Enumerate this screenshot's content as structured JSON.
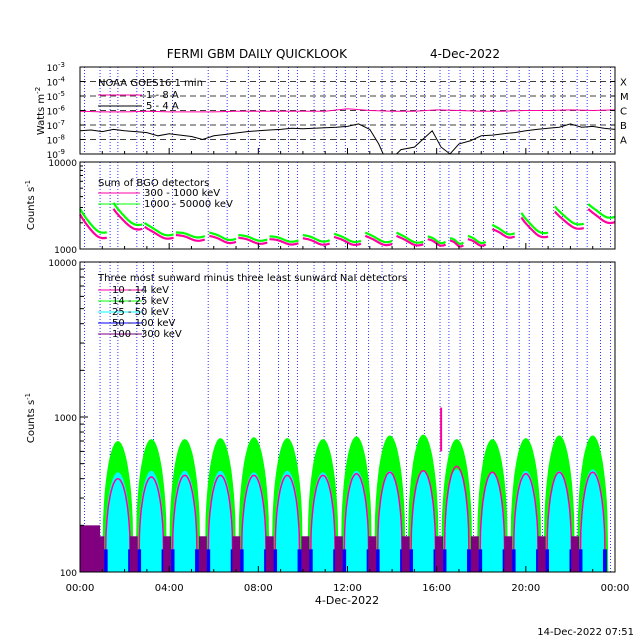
{
  "title": "FERMI GBM DAILY QUICKLOOK",
  "date": "4-Dec-2022",
  "timestamp": "14-Dec-2022 07:51",
  "xaxis": {
    "label": "4-Dec-2022",
    "range_hours": [
      0,
      24
    ],
    "ticks": [
      "00:00",
      "04:00",
      "08:00",
      "12:00",
      "16:00",
      "20:00",
      "00:00"
    ],
    "tick_hours": [
      0,
      4,
      8,
      12,
      16,
      20,
      24
    ]
  },
  "colors": {
    "magenta": "#ff00a0",
    "green": "#00ff00",
    "cyan": "#00ffff",
    "blue": "#0000ff",
    "purple": "#800080",
    "saa_lines": "#0000ff",
    "frame": "#000000"
  },
  "chart_data": [
    {
      "type": "line",
      "panel": "goes",
      "title": "NOAA GOES16 1 min",
      "ylabel": "Watts m",
      "ylabel_sup": "-2",
      "yscale": "log",
      "ylim": [
        1e-09,
        0.001
      ],
      "yticks": [
        {
          "base": "10",
          "exp": "-9"
        },
        {
          "base": "10",
          "exp": "-8"
        },
        {
          "base": "10",
          "exp": "-7"
        },
        {
          "base": "10",
          "exp": "-6"
        },
        {
          "base": "10",
          "exp": "-5"
        },
        {
          "base": "10",
          "exp": "-4"
        },
        {
          "base": "10",
          "exp": "-3"
        }
      ],
      "flare_classes": [
        "X",
        "M",
        "C",
        "B",
        "A"
      ],
      "flare_levels": [
        0.0001,
        1e-05,
        1e-06,
        1e-07,
        1e-08
      ],
      "series": [
        {
          "name": "1 - 8 A",
          "color": "#ff00a0",
          "x": [
            0,
            1,
            2,
            3,
            4,
            5,
            6,
            7,
            8,
            9,
            10,
            11,
            12,
            13,
            14,
            15,
            16,
            17,
            18,
            19,
            20,
            21,
            22,
            23,
            24
          ],
          "values": [
            9e-07,
            8e-07,
            8e-07,
            9e-07,
            8e-07,
            8e-07,
            8e-07,
            9e-07,
            9e-07,
            9e-07,
            9e-07,
            9e-07,
            1.3e-06,
            1e-06,
            9e-07,
            9e-07,
            1.1e-06,
            1e-06,
            9e-07,
            9e-07,
            1e-06,
            1e-06,
            1.1e-06,
            1e-06,
            1.1e-06
          ]
        },
        {
          "name": "5 - 4 A",
          "color": "#000000",
          "x": [
            0,
            0.5,
            1,
            1.5,
            2,
            2.5,
            3,
            3.5,
            4,
            4.5,
            5,
            5.5,
            6,
            6.5,
            7,
            7.5,
            8,
            8.5,
            9,
            9.5,
            10,
            10.5,
            11,
            11.5,
            12,
            12.5,
            13,
            13.4,
            13.6,
            14.2,
            14.4,
            15,
            15.5,
            15.8,
            16.2,
            16.6,
            17,
            17.5,
            18,
            18.5,
            19,
            19.5,
            20,
            20.5,
            21,
            21.5,
            22,
            22.5,
            23,
            23.5,
            24
          ],
          "values": [
            4e-08,
            4.5e-08,
            3.5e-08,
            5e-08,
            4e-08,
            3.5e-08,
            3e-08,
            1.8e-08,
            2.5e-08,
            2e-08,
            1.6e-08,
            1e-08,
            1.8e-08,
            2.2e-08,
            2.8e-08,
            3.5e-08,
            4e-08,
            4.5e-08,
            5e-08,
            6e-08,
            5.5e-08,
            6e-08,
            6.5e-08,
            7e-08,
            8e-08,
            1.2e-07,
            5e-08,
            5e-09,
            1e-09,
            1e-09,
            2e-09,
            3e-09,
            1.5e-08,
            4e-08,
            3e-09,
            1e-09,
            5e-09,
            8e-09,
            1.8e-08,
            2e-08,
            2.5e-08,
            3e-08,
            4e-08,
            5e-08,
            6e-08,
            7e-08,
            1.2e-07,
            7e-08,
            8e-08,
            6e-08,
            5e-08
          ]
        }
      ]
    },
    {
      "type": "line",
      "panel": "bgo",
      "title": "Sum of BGO detectors",
      "ylabel": "Counts s",
      "ylabel_sup": "-1",
      "yscale": "log",
      "ylim": [
        1000,
        10000
      ],
      "yticks": [
        "1000",
        "10000"
      ],
      "series": [
        {
          "name": "300 - 1000 keV",
          "color": "#ff00a0"
        },
        {
          "name": "1000 - 50000 keV",
          "color": "#00ff00"
        }
      ],
      "segments": [
        {
          "start": 0.0,
          "end": 1.2,
          "peak_high": 2900,
          "peak_low": 2500,
          "floor_high": 1500,
          "floor_low": 1300
        },
        {
          "start": 1.5,
          "end": 2.8,
          "peak_high": 3400,
          "peak_low": 2900,
          "floor_high": 1850,
          "floor_low": 1650
        },
        {
          "start": 2.9,
          "end": 4.2,
          "peak_high": 2000,
          "peak_low": 1800,
          "floor_high": 1450,
          "floor_low": 1330
        },
        {
          "start": 4.3,
          "end": 5.6,
          "peak_high": 1550,
          "peak_low": 1450,
          "floor_high": 1400,
          "floor_low": 1280
        },
        {
          "start": 5.8,
          "end": 7.0,
          "peak_high": 1550,
          "peak_low": 1420,
          "floor_high": 1300,
          "floor_low": 1200
        },
        {
          "start": 7.1,
          "end": 8.4,
          "peak_high": 1450,
          "peak_low": 1350,
          "floor_high": 1280,
          "floor_low": 1180
        },
        {
          "start": 8.5,
          "end": 9.8,
          "peak_high": 1400,
          "peak_low": 1300,
          "floor_high": 1250,
          "floor_low": 1160
        },
        {
          "start": 10.0,
          "end": 11.2,
          "peak_high": 1450,
          "peak_low": 1330,
          "floor_high": 1250,
          "floor_low": 1150
        },
        {
          "start": 11.4,
          "end": 12.6,
          "peak_high": 1500,
          "peak_low": 1380,
          "floor_high": 1230,
          "floor_low": 1140
        },
        {
          "start": 12.8,
          "end": 14.0,
          "peak_high": 1550,
          "peak_low": 1420,
          "floor_high": 1220,
          "floor_low": 1130
        },
        {
          "start": 14.2,
          "end": 15.4,
          "peak_high": 1550,
          "peak_low": 1420,
          "floor_high": 1200,
          "floor_low": 1120
        },
        {
          "start": 15.6,
          "end": 16.4,
          "peak_high": 1400,
          "peak_low": 1300,
          "floor_high": 1200,
          "floor_low": 1120
        },
        {
          "start": 16.6,
          "end": 17.2,
          "peak_high": 1330,
          "peak_low": 1250,
          "floor_high": 1180,
          "floor_low": 1100
        },
        {
          "start": 17.4,
          "end": 18.2,
          "peak_high": 1420,
          "peak_low": 1300,
          "floor_high": 1200,
          "floor_low": 1120
        },
        {
          "start": 18.5,
          "end": 19.5,
          "peak_high": 1900,
          "peak_low": 1700,
          "floor_high": 1500,
          "floor_low": 1380
        },
        {
          "start": 19.8,
          "end": 21.0,
          "peak_high": 2600,
          "peak_low": 2300,
          "floor_high": 1500,
          "floor_low": 1350
        },
        {
          "start": 21.3,
          "end": 22.6,
          "peak_high": 3100,
          "peak_low": 2700,
          "floor_high": 1900,
          "floor_low": 1700
        },
        {
          "start": 22.8,
          "end": 24.0,
          "peak_high": 3300,
          "peak_low": 2900,
          "floor_high": 2300,
          "floor_low": 2000
        }
      ]
    },
    {
      "type": "area",
      "panel": "nai",
      "title": "Three most sunward minus three least sunward NaI detectors",
      "ylabel": "Counts s",
      "ylabel_sup": "-1",
      "yscale": "log",
      "ylim": [
        100,
        10000
      ],
      "yticks": [
        "100",
        "1000",
        "10000"
      ],
      "series": [
        {
          "name": "10 - 14 keV",
          "color": "#ff00a0"
        },
        {
          "name": "14 - 25 keV",
          "color": "#00ff00"
        },
        {
          "name": "25 - 50 keV",
          "color": "#00ffff"
        },
        {
          "name": "50 - 100 keV",
          "color": "#0000ff"
        },
        {
          "name": "100 - 300 keV",
          "color": "#800080"
        }
      ],
      "orbits": [
        {
          "start": 1.0,
          "end": 2.4,
          "green": 700,
          "magenta": 400,
          "cyan": 440
        },
        {
          "start": 2.5,
          "end": 3.9,
          "green": 720,
          "magenta": 410,
          "cyan": 450
        },
        {
          "start": 4.0,
          "end": 5.4,
          "green": 720,
          "magenta": 420,
          "cyan": 450
        },
        {
          "start": 5.6,
          "end": 7.0,
          "green": 730,
          "magenta": 420,
          "cyan": 450
        },
        {
          "start": 7.1,
          "end": 8.5,
          "green": 740,
          "magenta": 420,
          "cyan": 440
        },
        {
          "start": 8.6,
          "end": 10.0,
          "green": 730,
          "magenta": 420,
          "cyan": 450
        },
        {
          "start": 10.2,
          "end": 11.6,
          "green": 720,
          "magenta": 420,
          "cyan": 440
        },
        {
          "start": 11.7,
          "end": 13.1,
          "green": 750,
          "magenta": 430,
          "cyan": 450
        },
        {
          "start": 13.2,
          "end": 14.6,
          "green": 760,
          "magenta": 440,
          "cyan": 450
        },
        {
          "start": 14.7,
          "end": 16.1,
          "green": 770,
          "magenta": 450,
          "cyan": 450
        },
        {
          "start": 16.2,
          "end": 17.6,
          "green": 720,
          "magenta": 480,
          "cyan": 460
        },
        {
          "start": 17.8,
          "end": 19.2,
          "green": 720,
          "magenta": 440,
          "cyan": 440
        },
        {
          "start": 19.3,
          "end": 20.7,
          "green": 730,
          "magenta": 430,
          "cyan": 450
        },
        {
          "start": 20.8,
          "end": 22.2,
          "green": 760,
          "magenta": 440,
          "cyan": 450
        },
        {
          "start": 22.3,
          "end": 23.7,
          "green": 760,
          "magenta": 440,
          "cyan": 460
        }
      ],
      "spike": {
        "x": 16.2,
        "value": 1150
      }
    }
  ],
  "saa_hours": [
    0.2,
    0.9,
    1.35,
    1.7,
    2.55,
    2.85,
    3.3,
    4.15,
    5.75,
    6.6,
    7.55,
    8.05,
    8.9,
    9.35,
    9.75,
    10.5,
    10.95,
    11.5,
    11.9,
    12.4,
    12.95,
    13.55,
    14.0,
    14.65,
    15.1,
    15.45,
    16.15,
    16.55,
    17.05,
    17.65,
    18.1,
    18.55,
    19.15,
    19.7,
    20.15,
    20.75,
    21.25,
    21.65,
    22.3,
    22.75,
    23.35,
    23.8
  ]
}
